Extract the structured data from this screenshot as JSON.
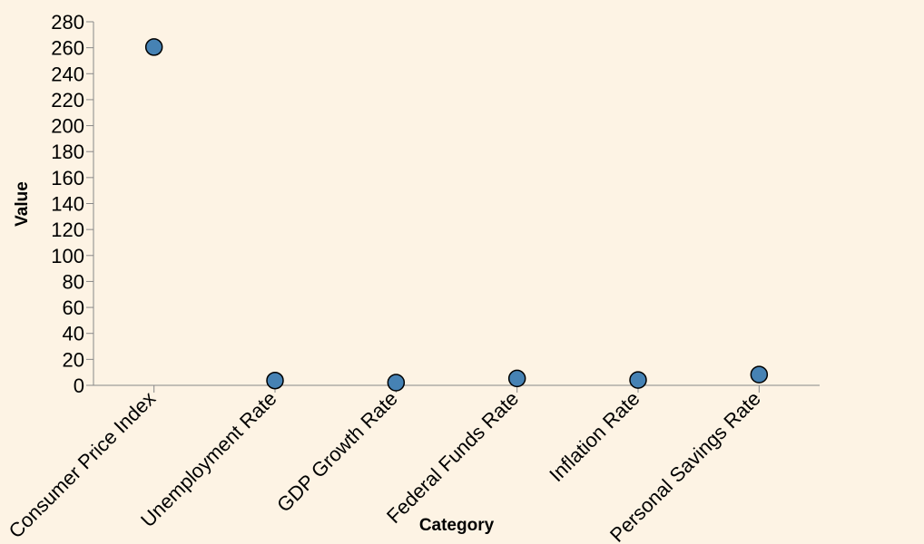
{
  "chart_data": {
    "type": "scatter",
    "categories": [
      "Consumer Price Index",
      "Unemployment Rate",
      "GDP Growth Rate",
      "Federal Funds Rate",
      "Inflation Rate",
      "Personal Savings Rate"
    ],
    "values": [
      260.5,
      3.7,
      2.1,
      5.3,
      4.1,
      8.3
    ],
    "xlabel": "Category",
    "ylabel": "Value",
    "ylim": [
      0,
      280
    ],
    "yticks": [
      0,
      20,
      40,
      60,
      80,
      100,
      120,
      140,
      160,
      180,
      200,
      220,
      240,
      260,
      280
    ],
    "grid": false,
    "colors": {
      "background": "#fdf3e4",
      "point_fill": "#4682b4",
      "point_stroke": "#000000",
      "axis": "#888888"
    }
  }
}
